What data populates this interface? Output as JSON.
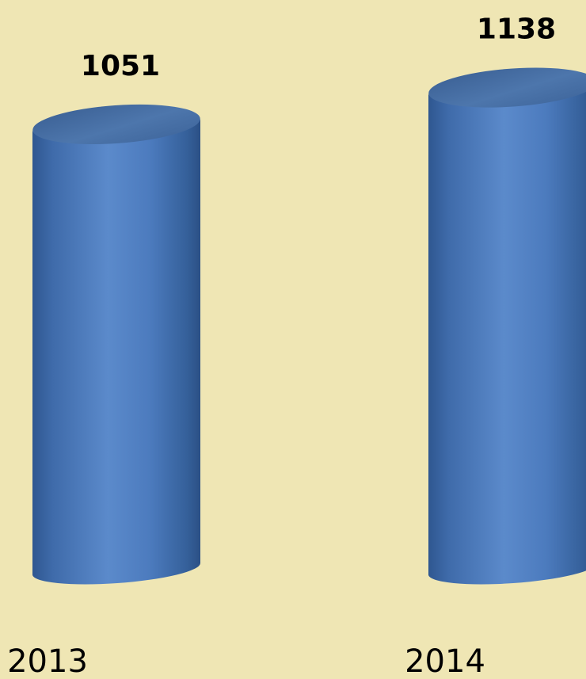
{
  "chart_data": {
    "type": "bar",
    "style": "3d-cylinder",
    "categories": [
      "2013",
      "2014"
    ],
    "values": [
      1051,
      1138
    ],
    "data_labels": [
      "1051",
      "1138"
    ],
    "title": "",
    "xlabel": "",
    "ylabel": "",
    "grid": false,
    "legend": "none",
    "colors": {
      "background": "#EFE6B4",
      "bar_light": "#5B8ACB",
      "bar_mid": "#4C7BBE",
      "bar_dark": "#2F5790",
      "top_light": "#4D76AC",
      "top_dark": "#3A5F93"
    }
  }
}
